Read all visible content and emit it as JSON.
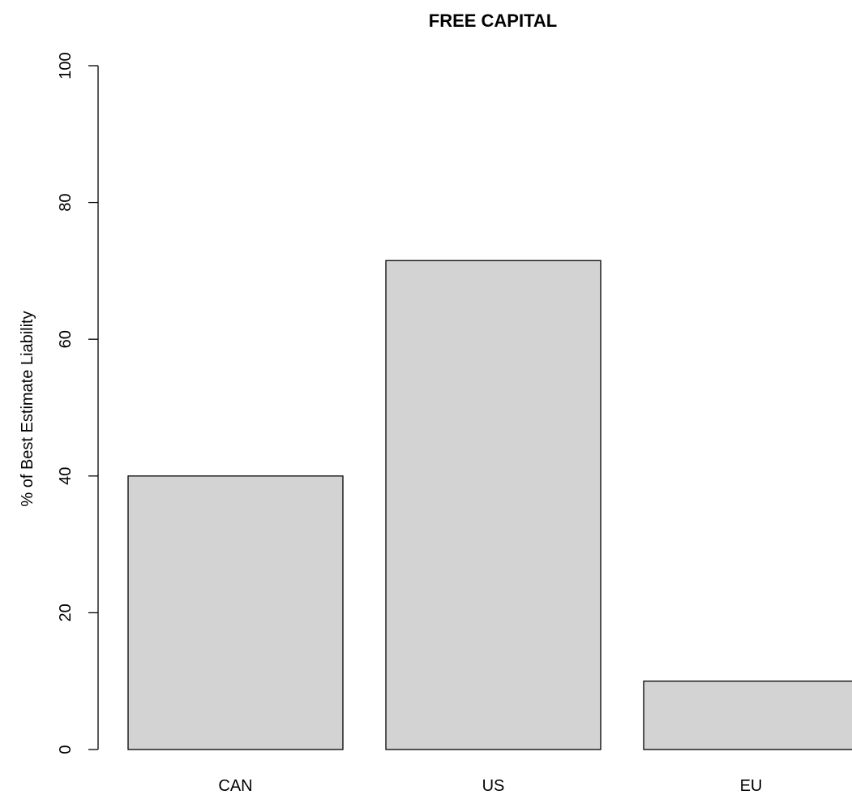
{
  "chart_data": {
    "type": "bar",
    "title": "FREE CAPITAL",
    "xlabel": "",
    "ylabel": "% of Best Estimate Liability",
    "categories": [
      "CAN",
      "US",
      "EU"
    ],
    "values": [
      40,
      71.5,
      10
    ],
    "ylim": [
      0,
      100
    ],
    "yticks": [
      0,
      20,
      40,
      60,
      80,
      100
    ],
    "ytick_labels": [
      "0",
      "20",
      "40",
      "60",
      "80",
      "100"
    ],
    "grid": false,
    "legend": "none",
    "bar_color": "#d3d3d3",
    "bar_edge_color": "#000000"
  }
}
